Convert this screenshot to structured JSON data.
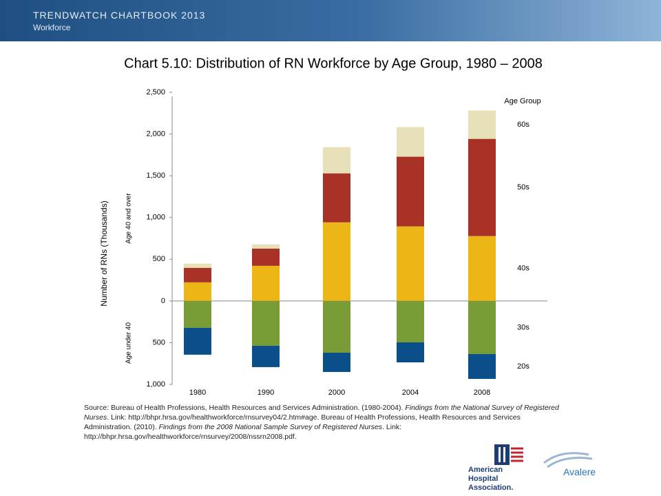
{
  "header": {
    "title": "TRENDWATCH CHARTBOOK 2013",
    "subtitle": "Workforce"
  },
  "chart_data": {
    "type": "bar",
    "stacked": true,
    "title": "Chart 5.10: Distribution of RN Workforce by Age Group, 1980 – 2008",
    "y_label": "Number of RNs (Thousands)",
    "upper_label": "Age 40 and over",
    "lower_label": "Age under 40",
    "legend_title": "Age Group",
    "categories": [
      "1980",
      "1990",
      "2000",
      "2004",
      "2008"
    ],
    "series": [
      {
        "name": "40s",
        "color": "#ecb617",
        "values": [
          223,
          421,
          942,
          893,
          777
        ]
      },
      {
        "name": "50s",
        "color": "#a83226",
        "values": [
          174,
          207,
          587,
          835,
          1165
        ]
      },
      {
        "name": "60s",
        "color": "#e8e0b8",
        "values": [
          50,
          50,
          314,
          355,
          339
        ]
      },
      {
        "name": "30s",
        "color": "#789b36",
        "values": [
          -322,
          -537,
          -620,
          -496,
          -636
        ]
      },
      {
        "name": "20s",
        "color": "#0b4f8a",
        "values": [
          -322,
          -256,
          -231,
          -240,
          -298
        ]
      }
    ],
    "ylim": [
      -1000,
      2500
    ],
    "yticks": [
      {
        "value": -1000,
        "label": "1,000"
      },
      {
        "value": -500,
        "label": "500"
      },
      0,
      500,
      {
        "value": 1000,
        "label": "1,000"
      },
      {
        "value": 1500,
        "label": "1,500"
      },
      {
        "value": 2000,
        "label": "2,000"
      },
      {
        "value": 2500,
        "label": "2,500"
      }
    ]
  },
  "source": [
    "Source: Bureau of Health Professions, Health Resources and Services Administration. (1980-2004). ",
    "Findings from the National Survey of Registered Nurses",
    ". Link: http://bhpr.hrsa.gov/healthworkforce/rnsurvey04/2.htm#age. Bureau of Health Professions, Health Resources and Services Administration. (2010). ",
    "Findings from the 2008 National Sample Survey of Registered Nurses",
    ". Link: http://bhpr.hrsa.gov/healthworkforce/rnsurvey/2008/nssrn2008.pdf."
  ],
  "logos": {
    "aha": "American Hospital Association.",
    "avalere": "Avalere"
  }
}
